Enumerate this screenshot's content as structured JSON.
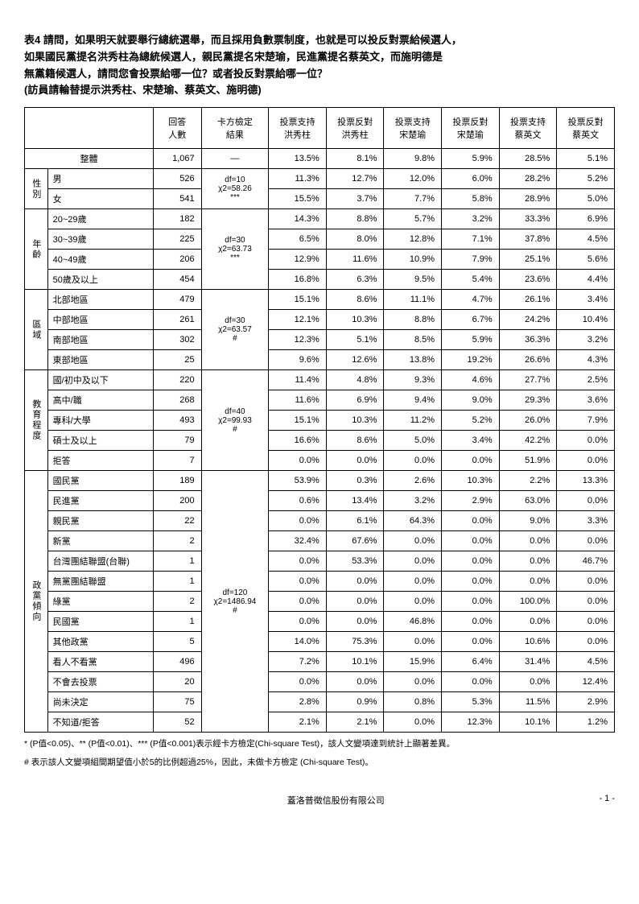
{
  "title_lines": [
    "表4  請問，如果明天就要舉行總統選舉，而且採用負數票制度，也就是可以投反對票給候選人，",
    "      如果國民黨提名洪秀柱為總統候選人，親民黨提名宋楚瑜，民進黨提名蔡英文，而施明德是",
    "      無黨籍候選人，請問您會投票給哪一位？或者投反對票給哪一位？",
    "      (訪員請輪替提示洪秀柱、宋楚瑜、蔡英文、施明德)"
  ],
  "headers": [
    "回答\n人數",
    "卡方檢定\n結果",
    "投票支持\n洪秀柱",
    "投票反對\n洪秀柱",
    "投票支持\n宋楚瑜",
    "投票反對\n宋楚瑜",
    "投票支持\n蔡英文",
    "投票反對\n蔡英文"
  ],
  "overall_label": "整體",
  "overall": [
    "1,067",
    "—",
    "13.5%",
    "8.1%",
    "9.8%",
    "5.9%",
    "28.5%",
    "5.1%"
  ],
  "groups": [
    {
      "name": "性別",
      "chi": "df=10\nχ2=58.26\n***",
      "rows": [
        {
          "label": "男",
          "cells": [
            "526",
            "",
            "11.3%",
            "12.7%",
            "12.0%",
            "6.0%",
            "28.2%",
            "5.2%"
          ]
        },
        {
          "label": "女",
          "cells": [
            "541",
            "",
            "15.5%",
            "3.7%",
            "7.7%",
            "5.8%",
            "28.9%",
            "5.0%"
          ]
        }
      ]
    },
    {
      "name": "年齡",
      "chi": "df=30\nχ2=63.73\n***",
      "rows": [
        {
          "label": "20~29歲",
          "cells": [
            "182",
            "",
            "14.3%",
            "8.8%",
            "5.7%",
            "3.2%",
            "33.3%",
            "6.9%"
          ]
        },
        {
          "label": "30~39歲",
          "cells": [
            "225",
            "",
            "6.5%",
            "8.0%",
            "12.8%",
            "7.1%",
            "37.8%",
            "4.5%"
          ]
        },
        {
          "label": "40~49歲",
          "cells": [
            "206",
            "",
            "12.9%",
            "11.6%",
            "10.9%",
            "7.9%",
            "25.1%",
            "5.6%"
          ]
        },
        {
          "label": "50歲及以上",
          "cells": [
            "454",
            "",
            "16.8%",
            "6.3%",
            "9.5%",
            "5.4%",
            "23.6%",
            "4.4%"
          ]
        }
      ]
    },
    {
      "name": "區域",
      "chi": "df=30\nχ2=63.57\n#",
      "rows": [
        {
          "label": "北部地區",
          "cells": [
            "479",
            "",
            "15.1%",
            "8.6%",
            "11.1%",
            "4.7%",
            "26.1%",
            "3.4%"
          ]
        },
        {
          "label": "中部地區",
          "cells": [
            "261",
            "",
            "12.1%",
            "10.3%",
            "8.8%",
            "6.7%",
            "24.2%",
            "10.4%"
          ]
        },
        {
          "label": "南部地區",
          "cells": [
            "302",
            "",
            "12.3%",
            "5.1%",
            "8.5%",
            "5.9%",
            "36.3%",
            "3.2%"
          ]
        },
        {
          "label": "東部地區",
          "cells": [
            "25",
            "",
            "9.6%",
            "12.6%",
            "13.8%",
            "19.2%",
            "26.6%",
            "4.3%"
          ]
        }
      ]
    },
    {
      "name": "教育程度",
      "chi": "df=40\nχ2=99.93\n#",
      "rows": [
        {
          "label": "國/初中及以下",
          "cells": [
            "220",
            "",
            "11.4%",
            "4.8%",
            "9.3%",
            "4.6%",
            "27.7%",
            "2.5%"
          ]
        },
        {
          "label": "高中/職",
          "cells": [
            "268",
            "",
            "11.6%",
            "6.9%",
            "9.4%",
            "9.0%",
            "29.3%",
            "3.6%"
          ]
        },
        {
          "label": "專科/大學",
          "cells": [
            "493",
            "",
            "15.1%",
            "10.3%",
            "11.2%",
            "5.2%",
            "26.0%",
            "7.9%"
          ]
        },
        {
          "label": "碩士及以上",
          "cells": [
            "79",
            "",
            "16.6%",
            "8.6%",
            "5.0%",
            "3.4%",
            "42.2%",
            "0.0%"
          ]
        },
        {
          "label": "拒答",
          "cells": [
            "7",
            "",
            "0.0%",
            "0.0%",
            "0.0%",
            "0.0%",
            "51.9%",
            "0.0%"
          ]
        }
      ]
    },
    {
      "name": "政黨傾向",
      "chi": "df=120\nχ2=1486.94\n#",
      "rows": [
        {
          "label": "國民黨",
          "cells": [
            "189",
            "",
            "53.9%",
            "0.3%",
            "2.6%",
            "10.3%",
            "2.2%",
            "13.3%"
          ]
        },
        {
          "label": "民進黨",
          "cells": [
            "200",
            "",
            "0.6%",
            "13.4%",
            "3.2%",
            "2.9%",
            "63.0%",
            "0.0%"
          ]
        },
        {
          "label": "親民黨",
          "cells": [
            "22",
            "",
            "0.0%",
            "6.1%",
            "64.3%",
            "0.0%",
            "9.0%",
            "3.3%"
          ]
        },
        {
          "label": "新黨",
          "cells": [
            "2",
            "",
            "32.4%",
            "67.6%",
            "0.0%",
            "0.0%",
            "0.0%",
            "0.0%"
          ]
        },
        {
          "label": "台灣團結聯盟(台聯)",
          "cells": [
            "1",
            "",
            "0.0%",
            "53.3%",
            "0.0%",
            "0.0%",
            "0.0%",
            "46.7%"
          ]
        },
        {
          "label": "無黨團結聯盟",
          "cells": [
            "1",
            "",
            "0.0%",
            "0.0%",
            "0.0%",
            "0.0%",
            "0.0%",
            "0.0%"
          ]
        },
        {
          "label": "綠黨",
          "cells": [
            "2",
            "",
            "0.0%",
            "0.0%",
            "0.0%",
            "0.0%",
            "100.0%",
            "0.0%"
          ]
        },
        {
          "label": "民國黨",
          "cells": [
            "1",
            "",
            "0.0%",
            "0.0%",
            "46.8%",
            "0.0%",
            "0.0%",
            "0.0%"
          ]
        },
        {
          "label": "其他政黨",
          "cells": [
            "5",
            "",
            "14.0%",
            "75.3%",
            "0.0%",
            "0.0%",
            "10.6%",
            "0.0%"
          ]
        },
        {
          "label": "看人不看黨",
          "cells": [
            "496",
            "",
            "7.2%",
            "10.1%",
            "15.9%",
            "6.4%",
            "31.4%",
            "4.5%"
          ]
        },
        {
          "label": "不會去投票",
          "cells": [
            "20",
            "",
            "0.0%",
            "0.0%",
            "0.0%",
            "0.0%",
            "0.0%",
            "12.4%"
          ]
        },
        {
          "label": "尚未決定",
          "cells": [
            "75",
            "",
            "2.8%",
            "0.9%",
            "0.8%",
            "5.3%",
            "11.5%",
            "2.9%"
          ]
        },
        {
          "label": "不知道/拒答",
          "cells": [
            "52",
            "",
            "2.1%",
            "2.1%",
            "0.0%",
            "12.3%",
            "10.1%",
            "1.2%"
          ]
        }
      ]
    }
  ],
  "footnote1": "* (P值<0.05)、** (P值<0.01)、*** (P值<0.001)表示經卡方檢定(Chi-square Test)，該人文變項達到統計上顯著差異。",
  "footnote2": "# 表示該人文變項組間期望值小於5的比例超過25%，因此，未做卡方檢定 (Chi-square Test)。",
  "footer_center": "蓋洛普徵信股份有限公司",
  "footer_right": "- 1 -"
}
